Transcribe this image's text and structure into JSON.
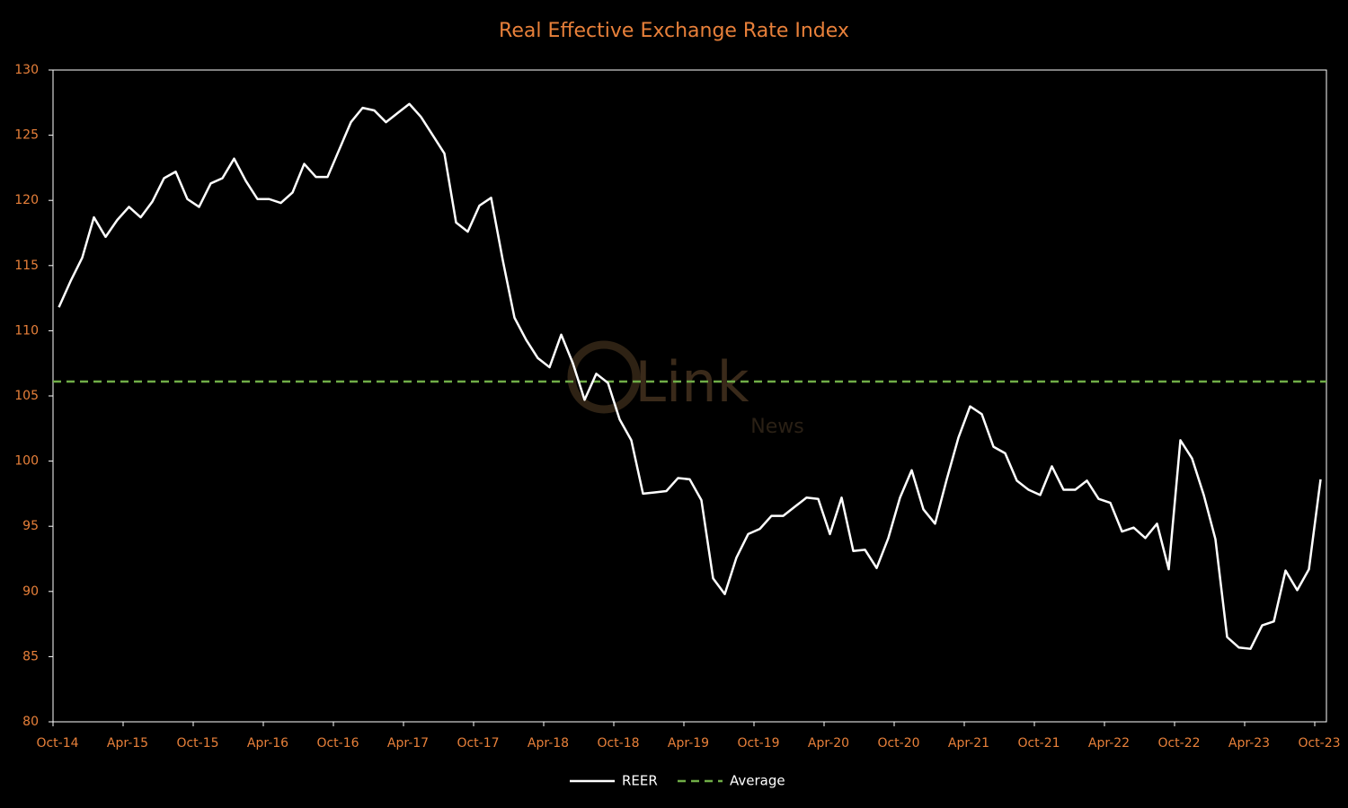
{
  "chart_data": {
    "type": "line",
    "title": "Real Effective Exchange Rate Index",
    "watermark": [
      "Link",
      "News"
    ],
    "categories": [
      "Oct-14",
      null,
      null,
      null,
      null,
      null,
      "Apr-15",
      null,
      null,
      null,
      null,
      null,
      "Oct-15",
      null,
      null,
      null,
      null,
      null,
      "Apr-16",
      null,
      null,
      null,
      null,
      null,
      "Oct-16",
      null,
      null,
      null,
      null,
      null,
      "Apr-17",
      null,
      null,
      null,
      null,
      null,
      "Oct-17",
      null,
      null,
      null,
      null,
      null,
      "Apr-18",
      null,
      null,
      null,
      null,
      null,
      "Oct-18",
      null,
      null,
      null,
      null,
      null,
      "Apr-19",
      null,
      null,
      null,
      null,
      null,
      "Oct-19",
      null,
      null,
      null,
      null,
      null,
      "Apr-20",
      null,
      null,
      null,
      null,
      null,
      "Oct-20",
      null,
      null,
      null,
      null,
      null,
      "Apr-21",
      null,
      null,
      null,
      null,
      null,
      "Oct-21",
      null,
      null,
      null,
      null,
      null,
      "Apr-22",
      null,
      null,
      null,
      null,
      null,
      "Oct-22",
      null,
      null,
      null,
      null,
      null,
      "Apr-23",
      null,
      null,
      null,
      null,
      null,
      "Oct-23"
    ],
    "series": [
      {
        "name": "REER",
        "color": "#ffffff",
        "values": [
          111.8,
          113.8,
          115.6,
          118.7,
          117.2,
          118.5,
          119.5,
          118.7,
          119.9,
          121.7,
          122.2,
          120.1,
          119.5,
          121.3,
          121.7,
          123.2,
          121.5,
          120.1,
          120.1,
          119.8,
          120.6,
          122.8,
          121.8,
          121.8,
          123.9,
          126.0,
          127.1,
          126.9,
          126.0,
          126.7,
          127.4,
          126.4,
          125.0,
          123.6,
          118.3,
          117.6,
          119.6,
          120.2,
          115.4,
          111.0,
          109.3,
          107.9,
          107.2,
          109.7,
          107.5,
          104.7,
          106.7,
          106.0,
          103.2,
          101.6,
          97.5,
          97.6,
          97.7,
          98.7,
          98.6,
          97.0,
          91.0,
          89.8,
          92.6,
          94.4,
          94.8,
          95.8,
          95.8,
          96.5,
          97.2,
          97.1,
          94.4,
          97.2,
          93.1,
          93.2,
          91.8,
          94.1,
          97.2,
          99.3,
          96.3,
          95.2,
          98.6,
          101.8,
          104.2,
          103.6,
          101.1,
          100.6,
          98.5,
          97.8,
          97.4,
          99.6,
          97.8,
          97.8,
          98.5,
          97.1,
          96.8,
          94.6,
          94.9,
          94.1,
          95.2,
          91.7,
          101.6,
          100.2,
          97.4,
          94.0,
          86.5,
          85.7,
          85.6,
          87.4,
          87.7,
          91.6,
          90.1,
          91.7,
          98.6
        ]
      }
    ],
    "average": {
      "name": "Average",
      "color": "#70ad47",
      "value": 106.1
    },
    "ylim": [
      80,
      130
    ],
    "yticks": [
      80,
      85,
      90,
      95,
      100,
      105,
      110,
      115,
      120,
      125,
      130
    ],
    "label_color": "#e8803a"
  }
}
